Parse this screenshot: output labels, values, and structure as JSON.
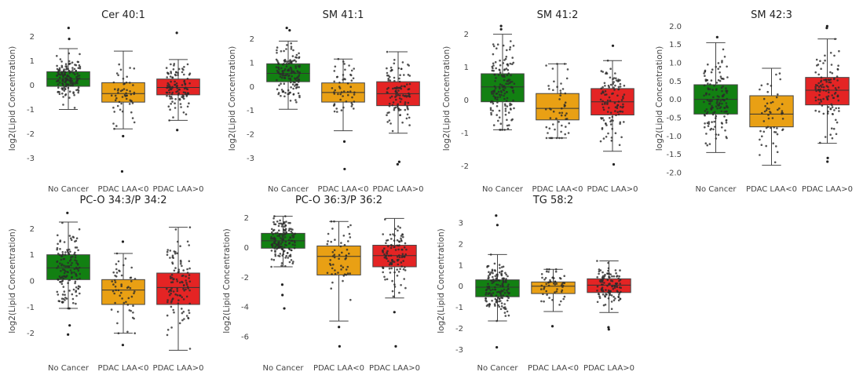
{
  "chart_data": [
    {
      "type": "box",
      "title": "Cer 40:1",
      "ylabel": "log2(Lipid Concentration)",
      "categories": [
        "No Cancer",
        "PDAC LAA<0",
        "PDAC LAA>0"
      ],
      "ylim": [
        -3.6,
        2.5
      ],
      "yticks": [
        2,
        1,
        0,
        -1,
        -2,
        -3
      ],
      "boxes": [
        {
          "category": "No Cancer",
          "color": "#128012",
          "q1": -0.05,
          "median": 0.25,
          "q3": 0.55,
          "whisker_low": -1.0,
          "whisker_high": 1.5,
          "outliers": [
            2.35,
            1.9
          ]
        },
        {
          "category": "PDAC LAA<0",
          "color": "#e9a014",
          "q1": -0.7,
          "median": -0.35,
          "q3": 0.1,
          "whisker_low": -1.8,
          "whisker_high": 1.4,
          "outliers": [
            -2.1,
            -3.55
          ]
        },
        {
          "category": "PDAC LAA>0",
          "color": "#e42424",
          "q1": -0.4,
          "median": -0.1,
          "q3": 0.25,
          "whisker_low": -1.45,
          "whisker_high": 1.05,
          "outliers": [
            2.15,
            -1.85
          ]
        }
      ]
    },
    {
      "type": "box",
      "title": "SM 41:1",
      "ylabel": "log2(Lipid Concentration)",
      "categories": [
        "No Cancer",
        "PDAC LAA<0",
        "PDAC LAA>0"
      ],
      "ylim": [
        -3.6,
        2.6
      ],
      "yticks": [
        2,
        1,
        0,
        -1,
        -2,
        -3
      ],
      "boxes": [
        {
          "category": "No Cancer",
          "color": "#128012",
          "q1": 0.2,
          "median": 0.55,
          "q3": 0.95,
          "whisker_low": -0.95,
          "whisker_high": 1.9,
          "outliers": [
            2.45,
            2.35
          ]
        },
        {
          "category": "PDAC LAA<0",
          "color": "#e9a014",
          "q1": -0.65,
          "median": -0.25,
          "q3": 0.15,
          "whisker_low": -1.85,
          "whisker_high": 1.15,
          "outliers": [
            -2.3,
            -3.45
          ]
        },
        {
          "category": "PDAC LAA>0",
          "color": "#e42424",
          "q1": -0.8,
          "median": -0.3,
          "q3": 0.2,
          "whisker_low": -1.95,
          "whisker_high": 1.45,
          "outliers": [
            -3.15,
            -3.25
          ]
        }
      ]
    },
    {
      "type": "box",
      "title": "SM 41:2",
      "ylabel": "log2(Lipid Concentration)",
      "categories": [
        "No Cancer",
        "PDAC LAA<0",
        "PDAC LAA>0"
      ],
      "ylim": [
        -2.2,
        2.3
      ],
      "yticks": [
        2,
        1,
        0,
        -1,
        -2
      ],
      "boxes": [
        {
          "category": "No Cancer",
          "color": "#128012",
          "q1": -0.05,
          "median": 0.4,
          "q3": 0.8,
          "whisker_low": -0.9,
          "whisker_high": 2.0,
          "outliers": [
            2.25,
            2.15
          ]
        },
        {
          "category": "PDAC LAA<0",
          "color": "#e9a014",
          "q1": -0.6,
          "median": -0.25,
          "q3": 0.2,
          "whisker_low": -1.15,
          "whisker_high": 1.1,
          "outliers": []
        },
        {
          "category": "PDAC LAA>0",
          "color": "#e42424",
          "q1": -0.45,
          "median": -0.05,
          "q3": 0.35,
          "whisker_low": -1.55,
          "whisker_high": 1.2,
          "outliers": [
            1.65,
            -1.95
          ]
        }
      ]
    },
    {
      "type": "box",
      "title": "SM 42:3",
      "ylabel": "log2(Lipid Concentration)",
      "categories": [
        "No Cancer",
        "PDAC LAA<0",
        "PDAC LAA>0"
      ],
      "ylim": [
        -2.0,
        2.05
      ],
      "yticks": [
        2.0,
        1.5,
        1.0,
        0.5,
        0.0,
        -0.5,
        -1.0,
        -1.5,
        -2.0
      ],
      "tick_format": "fixed1",
      "boxes": [
        {
          "category": "No Cancer",
          "color": "#128012",
          "q1": -0.4,
          "median": 0.0,
          "q3": 0.4,
          "whisker_low": -1.45,
          "whisker_high": 1.55,
          "outliers": [
            1.7
          ]
        },
        {
          "category": "PDAC LAA<0",
          "color": "#e9a014",
          "q1": -0.75,
          "median": -0.4,
          "q3": 0.1,
          "whisker_low": -1.8,
          "whisker_high": 0.85,
          "outliers": []
        },
        {
          "category": "PDAC LAA>0",
          "color": "#e42424",
          "q1": -0.15,
          "median": 0.25,
          "q3": 0.6,
          "whisker_low": -1.2,
          "whisker_high": 1.65,
          "outliers": [
            2.0,
            1.95,
            -1.6,
            -1.7
          ]
        }
      ]
    },
    {
      "type": "box",
      "title": "PC-O 34:3/P 34:2",
      "ylabel": "log2(Lipid Concentration)",
      "categories": [
        "No Cancer",
        "PDAC LAA<0",
        "PDAC LAA>0"
      ],
      "ylim": [
        -2.7,
        2.7
      ],
      "yticks": [
        2,
        1,
        0,
        -1,
        -2
      ],
      "boxes": [
        {
          "category": "No Cancer",
          "color": "#128012",
          "q1": 0.05,
          "median": 0.5,
          "q3": 1.0,
          "whisker_low": -1.05,
          "whisker_high": 2.25,
          "outliers": [
            2.6,
            -1.7,
            -2.05
          ]
        },
        {
          "category": "PDAC LAA<0",
          "color": "#e9a014",
          "q1": -0.9,
          "median": -0.35,
          "q3": 0.05,
          "whisker_low": -2.0,
          "whisker_high": 1.05,
          "outliers": [
            1.5,
            -2.45
          ]
        },
        {
          "category": "PDAC LAA>0",
          "color": "#e42424",
          "q1": -0.9,
          "median": -0.25,
          "q3": 0.3,
          "whisker_low": -2.65,
          "whisker_high": 2.05,
          "outliers": []
        }
      ]
    },
    {
      "type": "box",
      "title": "PC-O 36:3/P 36:2",
      "ylabel": "log2(Lipid Concentration)",
      "categories": [
        "No Cancer",
        "PDAC LAA<0",
        "PDAC LAA>0"
      ],
      "ylim": [
        -7.0,
        2.5
      ],
      "yticks": [
        2,
        0,
        -2,
        -4,
        -6
      ],
      "boxes": [
        {
          "category": "No Cancer",
          "color": "#128012",
          "q1": -0.05,
          "median": 0.45,
          "q3": 0.95,
          "whisker_low": -1.3,
          "whisker_high": 2.1,
          "outliers": [
            -2.5,
            -3.2,
            -4.1
          ]
        },
        {
          "category": "PDAC LAA<0",
          "color": "#e9a014",
          "q1": -1.85,
          "median": -0.6,
          "q3": 0.1,
          "whisker_low": -4.95,
          "whisker_high": 1.75,
          "outliers": [
            -5.35,
            -6.65
          ]
        },
        {
          "category": "PDAC LAA>0",
          "color": "#e42424",
          "q1": -1.3,
          "median": -0.55,
          "q3": 0.15,
          "whisker_low": -3.4,
          "whisker_high": 1.95,
          "outliers": [
            -4.35,
            -6.65
          ]
        }
      ]
    },
    {
      "type": "box",
      "title": "TG 58:2",
      "ylabel": "log2(Lipid Concentration)",
      "categories": [
        "No Cancer",
        "PDAC LAA<0",
        "PDAC LAA>0"
      ],
      "ylim": [
        -3.1,
        3.6
      ],
      "yticks": [
        3,
        2,
        1,
        0,
        -1,
        -2,
        -3
      ],
      "boxes": [
        {
          "category": "No Cancer",
          "color": "#128012",
          "q1": -0.5,
          "median": -0.05,
          "q3": 0.3,
          "whisker_low": -1.65,
          "whisker_high": 1.5,
          "outliers": [
            3.35,
            2.9,
            -2.9
          ]
        },
        {
          "category": "PDAC LAA<0",
          "color": "#e9a014",
          "q1": -0.35,
          "median": 0.0,
          "q3": 0.2,
          "whisker_low": -1.2,
          "whisker_high": 0.8,
          "outliers": [
            -1.9
          ]
        },
        {
          "category": "PDAC LAA>0",
          "color": "#e42424",
          "q1": -0.3,
          "median": 0.05,
          "q3": 0.35,
          "whisker_low": -1.25,
          "whisker_high": 1.2,
          "outliers": [
            -1.95,
            -2.05
          ]
        }
      ]
    }
  ]
}
